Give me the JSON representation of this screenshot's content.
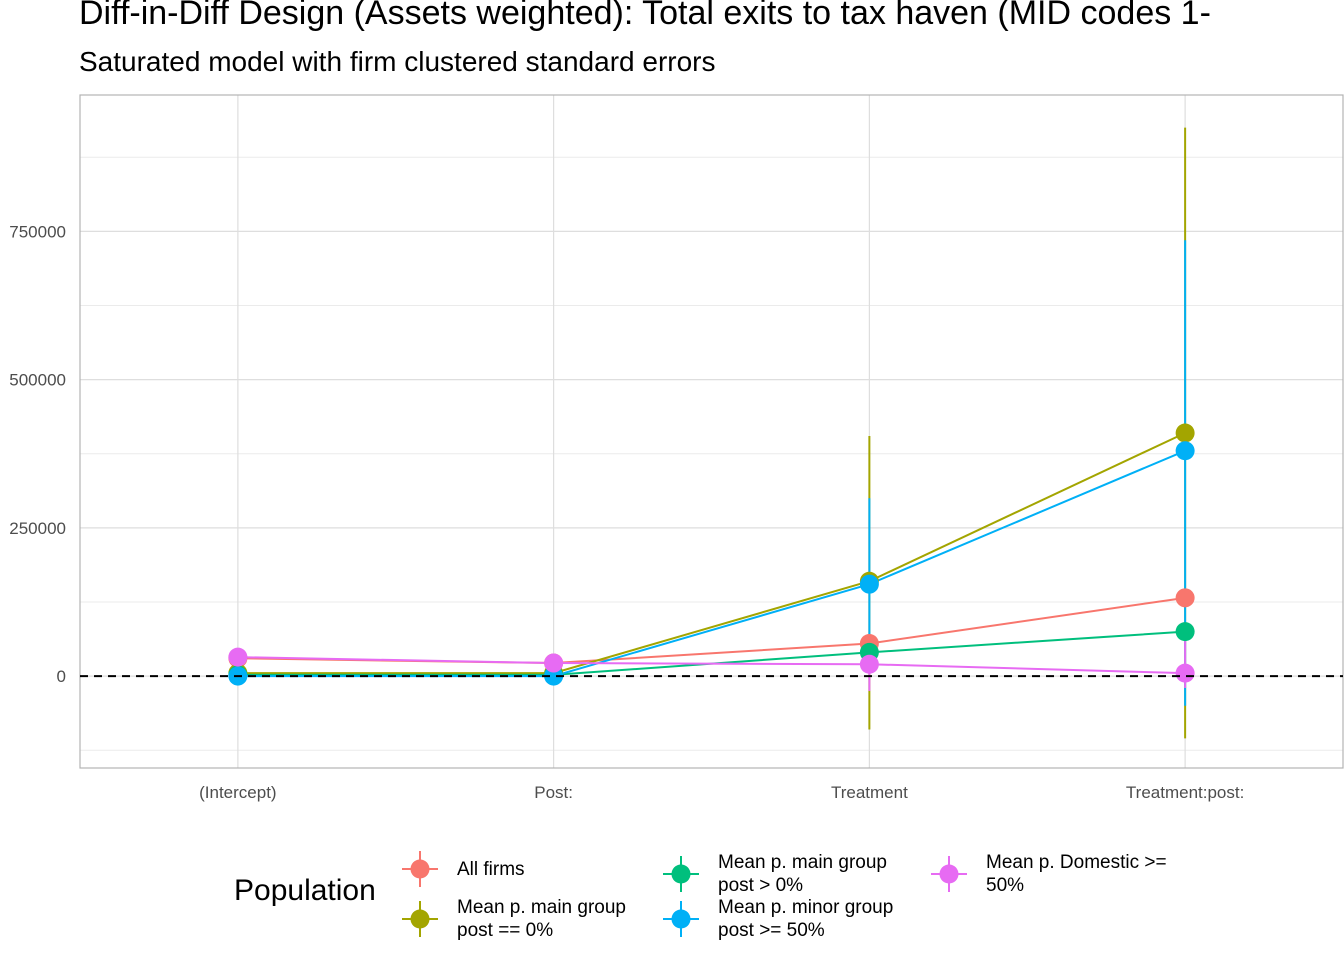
{
  "title": "Diff-in-Diff Design (Assets weighted): Total exits to tax haven (MID codes 1-",
  "subtitle": "Saturated model with firm clustered standard errors",
  "chart_data": {
    "type": "line",
    "categories": [
      "(Intercept)",
      "Post:",
      "Treatment",
      "Treatment:post:"
    ],
    "ylim": [
      -155000,
      980000
    ],
    "yticks": [
      0,
      250000,
      500000,
      750000
    ],
    "ytick_labels": [
      "0",
      "250000",
      "500000",
      "750000"
    ],
    "reference_line": 0,
    "grid": true,
    "legend_title": "Population",
    "legend_position": "bottom",
    "series": [
      {
        "name": "All firms",
        "color": "#F8766D",
        "values": [
          30000,
          22000,
          55000,
          132000
        ],
        "lower": [
          30000,
          22000,
          55000,
          132000
        ],
        "upper": [
          30000,
          22000,
          55000,
          132000
        ]
      },
      {
        "name": "Mean p. main group post == 0%",
        "color": "#A3A500",
        "values": [
          5000,
          5000,
          160000,
          410000
        ],
        "lower": [
          5000,
          5000,
          -90000,
          -105000
        ],
        "upper": [
          5000,
          5000,
          405000,
          925000
        ]
      },
      {
        "name": "Mean p. main group post > 0%",
        "color": "#00BF7D",
        "values": [
          2000,
          2000,
          40000,
          75000
        ],
        "lower": [
          2000,
          2000,
          40000,
          75000
        ],
        "upper": [
          2000,
          2000,
          40000,
          75000
        ]
      },
      {
        "name": "Mean p. minor group post >= 50%",
        "color": "#00B0F6",
        "values": [
          0,
          0,
          155000,
          380000
        ],
        "lower": [
          0,
          0,
          5000,
          -50000
        ],
        "upper": [
          0,
          0,
          300000,
          735000
        ]
      },
      {
        "name": "Mean p. Domestic >= 50%",
        "color": "#E76BF3",
        "values": [
          32000,
          22000,
          20000,
          5000
        ],
        "lower": [
          25000,
          18000,
          -25000,
          -20000
        ],
        "upper": [
          45000,
          26000,
          60000,
          60000
        ]
      }
    ]
  }
}
